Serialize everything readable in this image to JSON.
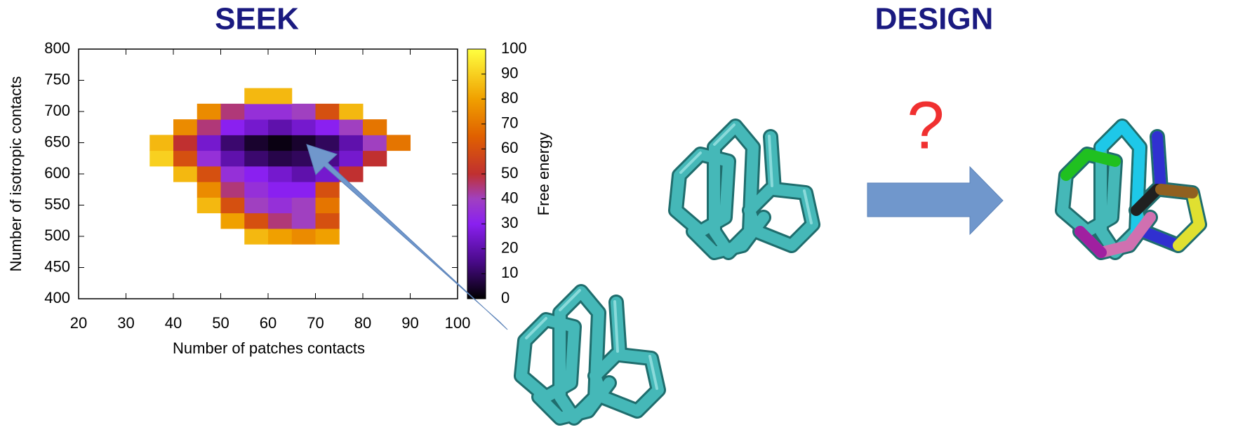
{
  "seek_title": "SEEK",
  "design_title": "DESIGN",
  "question_mark": "?",
  "chart_data": {
    "type": "heatmap",
    "xlabel": "Number of patches contacts",
    "ylabel": "Number of isotropic contacts",
    "colorbar_label": "Free energy",
    "xlim": [
      20,
      100
    ],
    "ylim": [
      400,
      800
    ],
    "xticks": [
      20,
      30,
      40,
      50,
      60,
      70,
      80,
      90,
      100
    ],
    "yticks": [
      400,
      450,
      500,
      550,
      600,
      650,
      700,
      750,
      800
    ],
    "clim": [
      0,
      100
    ],
    "cticks": [
      0,
      10,
      20,
      30,
      40,
      50,
      60,
      70,
      80,
      90,
      100
    ],
    "colormap": [
      {
        "value": 0,
        "color": "#000000"
      },
      {
        "value": 15,
        "color": "#4a0a8a"
      },
      {
        "value": 30,
        "color": "#8a20f0"
      },
      {
        "value": 40,
        "color": "#a040c0"
      },
      {
        "value": 50,
        "color": "#c03030"
      },
      {
        "value": 65,
        "color": "#e06000"
      },
      {
        "value": 80,
        "color": "#f0a000"
      },
      {
        "value": 100,
        "color": "#ffff40"
      }
    ],
    "x": [
      37.5,
      42.5,
      47.5,
      52.5,
      57.5,
      62.5,
      67.5,
      72.5,
      77.5,
      82.5,
      87.5
    ],
    "y": [
      500,
      525,
      550,
      575,
      600,
      625,
      650,
      675,
      700,
      725
    ],
    "z": [
      [
        null,
        null,
        null,
        null,
        85,
        80,
        75,
        80,
        null,
        null,
        null
      ],
      [
        null,
        null,
        null,
        80,
        60,
        45,
        40,
        60,
        null,
        null,
        null
      ],
      [
        null,
        null,
        85,
        60,
        40,
        35,
        40,
        70,
        null,
        null,
        null
      ],
      [
        null,
        null,
        75,
        45,
        35,
        30,
        30,
        60,
        null,
        null,
        null
      ],
      [
        null,
        85,
        60,
        35,
        30,
        25,
        20,
        25,
        50,
        null,
        null
      ],
      [
        90,
        60,
        35,
        20,
        12,
        8,
        10,
        15,
        25,
        50,
        null
      ],
      [
        85,
        50,
        25,
        12,
        5,
        2,
        5,
        10,
        20,
        40,
        70
      ],
      [
        null,
        75,
        45,
        30,
        25,
        20,
        25,
        30,
        40,
        70,
        null
      ],
      [
        null,
        null,
        75,
        45,
        35,
        35,
        40,
        60,
        85,
        null,
        null
      ],
      [
        null,
        null,
        null,
        null,
        85,
        85,
        null,
        null,
        null,
        null,
        null
      ]
    ]
  }
}
